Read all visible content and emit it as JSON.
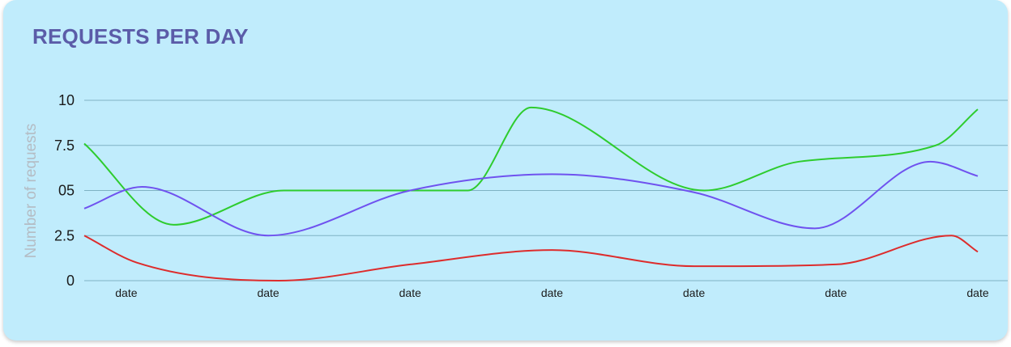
{
  "chart_data": {
    "type": "line",
    "title": "REQUESTS PER DAY",
    "xlabel": "",
    "ylabel": "Number of requests",
    "ylim": [
      0,
      10
    ],
    "grid": true,
    "yticks": [
      {
        "value": 0,
        "label": "0"
      },
      {
        "value": 2.5,
        "label": "2.5"
      },
      {
        "value": 5,
        "label": "05"
      },
      {
        "value": 7.5,
        "label": "7.5"
      },
      {
        "value": 10,
        "label": "10"
      }
    ],
    "xticks": [
      {
        "x": 0.8,
        "label": "date"
      },
      {
        "x": 3.5,
        "label": "date"
      },
      {
        "x": 6.2,
        "label": "date"
      },
      {
        "x": 8.9,
        "label": "date"
      },
      {
        "x": 11.6,
        "label": "date"
      },
      {
        "x": 14.3,
        "label": "date"
      },
      {
        "x": 17,
        "label": "date"
      }
    ],
    "xlim": [
      0,
      17
    ],
    "series": [
      {
        "color": "#2ecc2e",
        "points": [
          [
            0,
            7.6
          ],
          [
            1.7,
            3.1
          ],
          [
            3.8,
            5.0
          ],
          [
            7.3,
            5.0
          ],
          [
            8.5,
            9.6
          ],
          [
            11.8,
            5.0
          ],
          [
            13.6,
            6.6
          ],
          [
            16.2,
            7.5
          ],
          [
            17,
            9.5
          ]
        ]
      },
      {
        "color": "#6f52ef",
        "points": [
          [
            0,
            4.0
          ],
          [
            1.1,
            5.2
          ],
          [
            3.5,
            2.5
          ],
          [
            6.2,
            5.0
          ],
          [
            8.9,
            5.9
          ],
          [
            11.6,
            4.9
          ],
          [
            13.9,
            2.9
          ],
          [
            16.1,
            6.6
          ],
          [
            17,
            5.8
          ]
        ]
      },
      {
        "color": "#dd2c2c",
        "points": [
          [
            0,
            2.5
          ],
          [
            1.0,
            1.0
          ],
          [
            3.7,
            0.0
          ],
          [
            6.2,
            0.9
          ],
          [
            8.9,
            1.7
          ],
          [
            11.6,
            0.8
          ],
          [
            14.3,
            0.9
          ],
          [
            16.5,
            2.5
          ],
          [
            17,
            1.6
          ]
        ]
      }
    ]
  }
}
